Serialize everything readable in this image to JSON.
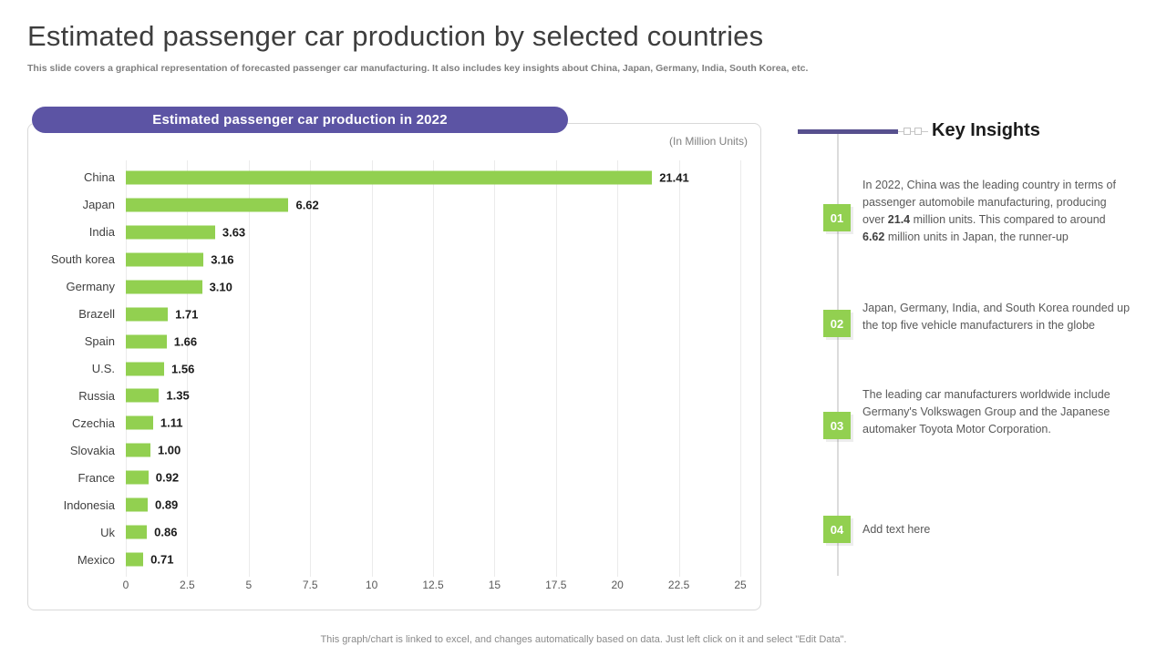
{
  "slide": {
    "title": "Estimated passenger car production by selected countries",
    "subtitle": "This slide covers a graphical representation of forecasted passenger car manufacturing. It also includes key insights about China, Japan, Germany, India, South Korea, etc.",
    "footer": "This graph/chart is linked to excel, and changes automatically based on data. Just left click on it and select \"Edit Data\"."
  },
  "chart_header": "Estimated passenger car production in 2022",
  "chart_data": {
    "type": "bar",
    "orientation": "horizontal",
    "title": "Estimated passenger car production in 2022",
    "units_note": "(In Million Units)",
    "categories": [
      "China",
      "Japan",
      "India",
      "South korea",
      "Germany",
      "Brazell",
      "Spain",
      "U.S.",
      "Russia",
      "Czechia",
      "Slovakia",
      "France",
      "Indonesia",
      "Uk",
      "Mexico"
    ],
    "values": [
      21.41,
      6.62,
      3.63,
      3.16,
      3.1,
      1.71,
      1.66,
      1.56,
      1.35,
      1.11,
      1.0,
      0.92,
      0.89,
      0.86,
      0.71
    ],
    "value_labels": [
      "21.41",
      "6.62",
      "3.63",
      "3.16",
      "3.10",
      "1.71",
      "1.66",
      "1.56",
      "1.35",
      "1.11",
      "1.00",
      "0.92",
      "0.89",
      "0.86",
      "0.71"
    ],
    "xlim": [
      0,
      25
    ],
    "x_ticks": [
      "0",
      "2.5",
      "5",
      "7.5",
      "10",
      "12.5",
      "15",
      "17.5",
      "20",
      "22.5",
      "25"
    ],
    "bar_color": "#92d050",
    "grid": true,
    "legend": "none"
  },
  "insights": {
    "heading": "Key Insights",
    "badge_color": "#92d050",
    "accent_color": "#57508e",
    "items": [
      {
        "number": "01",
        "segments": [
          {
            "text": "In 2022, China was the leading country in terms of passenger automobile manufacturing, producing over ",
            "bold": false
          },
          {
            "text": "21.4",
            "bold": true
          },
          {
            "text": " million units. This compared to around ",
            "bold": false
          },
          {
            "text": "6.62",
            "bold": true
          },
          {
            "text": " million units in Japan, the runner-up",
            "bold": false
          }
        ]
      },
      {
        "number": "02",
        "segments": [
          {
            "text": "Japan, Germany, India, and South Korea rounded up the top five vehicle manufacturers in the globe",
            "bold": false
          }
        ]
      },
      {
        "number": "03",
        "segments": [
          {
            "text": "The leading car manufacturers worldwide include Germany's Volkswagen Group and the Japanese automaker Toyota Motor Corporation.",
            "bold": false
          }
        ]
      },
      {
        "number": "04",
        "segments": [
          {
            "text": "Add text here",
            "bold": false
          }
        ]
      }
    ]
  },
  "colors": {
    "bar_green": "#92d050",
    "header_purple": "#5c54a4",
    "insight_line_purple": "#57508e",
    "card_border": "#d9d9d9"
  }
}
